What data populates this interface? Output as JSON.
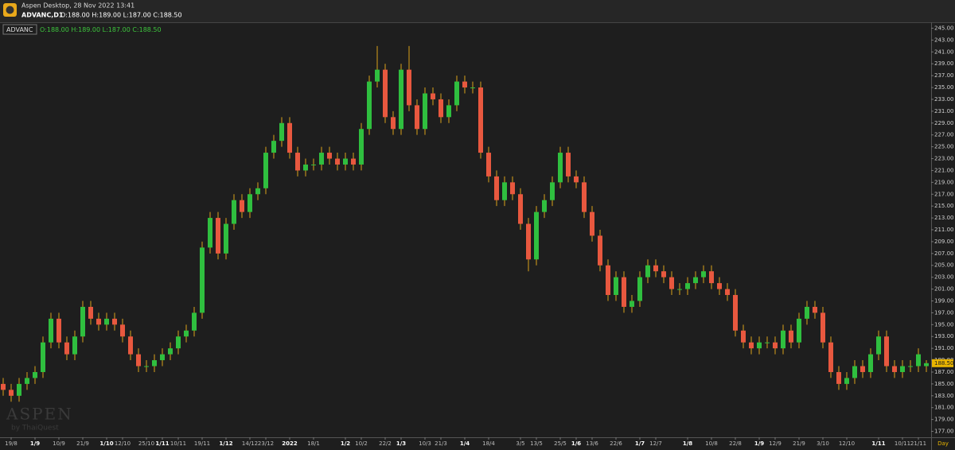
{
  "window_title": "Aspen Desktop, 28 Nov 2022 13:41",
  "symbol_header": "ADVANC,D1",
  "ohlc_header": "O:188.00 H:189.00 L:187.00 C:188.50",
  "watermark": "ASPEN",
  "watermark_sub": "by ThaiQuest",
  "chart_data": {
    "type": "candlestick",
    "legend_symbol": "ADVANC",
    "legend_ohlc": "O:188.00 H:189.00 L:187.00 C:188.50",
    "up_color": "#2fbf3f",
    "down_color": "#e8583f",
    "wick_color": "#d9a21b",
    "grid": false,
    "ylim": [
      176,
      246
    ],
    "yticks": [
      {
        "value": 177,
        "label": "177.00"
      },
      {
        "value": 179,
        "label": "179.00"
      },
      {
        "value": 181,
        "label": "181.00"
      },
      {
        "value": 183,
        "label": "183.00"
      },
      {
        "value": 185,
        "label": "185.00"
      },
      {
        "value": 187,
        "label": "187.00"
      },
      {
        "value": 189,
        "label": "189.00"
      },
      {
        "value": 191,
        "label": "191.00"
      },
      {
        "value": 193,
        "label": "193.00"
      },
      {
        "value": 195,
        "label": "195.00"
      },
      {
        "value": 197,
        "label": "197.00"
      },
      {
        "value": 199,
        "label": "199.00"
      },
      {
        "value": 201,
        "label": "201.00"
      },
      {
        "value": 203,
        "label": "203.00"
      },
      {
        "value": 205,
        "label": "205.00"
      },
      {
        "value": 207,
        "label": "207.00"
      },
      {
        "value": 209,
        "label": "209.00"
      },
      {
        "value": 211,
        "label": "211.00"
      },
      {
        "value": 213,
        "label": "213.00"
      },
      {
        "value": 215,
        "label": "215.00"
      },
      {
        "value": 217,
        "label": "217.00"
      },
      {
        "value": 219,
        "label": "219.00"
      },
      {
        "value": 221,
        "label": "221.00"
      },
      {
        "value": 223,
        "label": "223.00"
      },
      {
        "value": 225,
        "label": "225.00"
      },
      {
        "value": 227,
        "label": "227.00"
      },
      {
        "value": 229,
        "label": "229.00"
      },
      {
        "value": 231,
        "label": "231.00"
      },
      {
        "value": 233,
        "label": "233.00"
      },
      {
        "value": 235,
        "label": "235.00"
      },
      {
        "value": 237,
        "label": "237.00"
      },
      {
        "value": 239,
        "label": "239.00"
      },
      {
        "value": 241,
        "label": "241.00"
      },
      {
        "value": 243,
        "label": "243.00"
      },
      {
        "value": 245,
        "label": "245.00"
      }
    ],
    "last_price": {
      "value": 188.5,
      "label": "188.50"
    },
    "x_unit": "Day",
    "categories": [
      null,
      "19/8",
      null,
      null,
      "1/9",
      null,
      null,
      "10/9",
      null,
      null,
      "21/9",
      null,
      null,
      "1/10",
      null,
      "12/10",
      null,
      null,
      "25/10",
      null,
      "1/11",
      null,
      "10/11",
      null,
      null,
      "19/11",
      null,
      null,
      "1/12",
      null,
      null,
      "14/12",
      null,
      "23/12",
      null,
      null,
      "2022",
      null,
      null,
      "18/1",
      null,
      null,
      null,
      "1/2",
      null,
      "10/2",
      null,
      null,
      "22/2",
      null,
      "1/3",
      null,
      null,
      "10/3",
      null,
      "21/3",
      null,
      null,
      "1/4",
      null,
      null,
      "18/4",
      null,
      null,
      null,
      "3/5",
      null,
      "13/5",
      null,
      null,
      "25/5",
      null,
      "1/6",
      null,
      "13/6",
      null,
      null,
      "22/6",
      null,
      null,
      "1/7",
      null,
      "12/7",
      null,
      null,
      null,
      "1/8",
      null,
      null,
      "10/8",
      null,
      null,
      "22/8",
      null,
      null,
      "1/9",
      null,
      "12/9",
      null,
      null,
      "21/9",
      null,
      null,
      "3/10",
      null,
      null,
      "12/10",
      null,
      null,
      null,
      "1/11",
      null,
      null,
      "10/11",
      null,
      "21/11",
      null
    ],
    "open": [
      185,
      184,
      183,
      185,
      186,
      187,
      192,
      196,
      192,
      190,
      193,
      198,
      196,
      195,
      196,
      195,
      193,
      190,
      188,
      188,
      189,
      190,
      191,
      193,
      194,
      197,
      208,
      213,
      207,
      212,
      216,
      214,
      217,
      218,
      224,
      226,
      229,
      224,
      221,
      222,
      222,
      224,
      223,
      222,
      223,
      222,
      228,
      236,
      238,
      230,
      228,
      238,
      232,
      228,
      234,
      233,
      230,
      232,
      236,
      235,
      235,
      224,
      220,
      216,
      219,
      217,
      212,
      206,
      214,
      216,
      219,
      224,
      220,
      219,
      214,
      210,
      205,
      200,
      203,
      198,
      199,
      203,
      205,
      204,
      203,
      201,
      201,
      202,
      203,
      204,
      202,
      201,
      200,
      194,
      192,
      191,
      192,
      192,
      191,
      194,
      192,
      196,
      198,
      197,
      192,
      187,
      185,
      186,
      188,
      187,
      190,
      193,
      188,
      187,
      188,
      188,
      188
    ],
    "high": [
      186,
      185,
      186,
      187,
      188,
      193,
      197,
      197,
      193,
      194,
      199,
      199,
      197,
      197,
      197,
      196,
      194,
      191,
      189,
      190,
      191,
      192,
      194,
      195,
      198,
      209,
      214,
      214,
      213,
      217,
      217,
      218,
      219,
      225,
      227,
      230,
      230,
      225,
      223,
      223,
      225,
      225,
      224,
      224,
      224,
      229,
      237,
      242,
      239,
      231,
      239,
      242,
      233,
      235,
      235,
      234,
      233,
      237,
      237,
      236,
      236,
      225,
      221,
      220,
      220,
      218,
      213,
      215,
      217,
      220,
      225,
      225,
      221,
      220,
      215,
      211,
      206,
      204,
      204,
      200,
      204,
      206,
      206,
      205,
      204,
      202,
      203,
      204,
      205,
      205,
      203,
      202,
      201,
      195,
      193,
      193,
      193,
      193,
      195,
      195,
      197,
      199,
      199,
      198,
      193,
      188,
      187,
      189,
      189,
      191,
      194,
      194,
      189,
      189,
      189,
      191,
      189
    ],
    "low": [
      183,
      182,
      182,
      184,
      185,
      186,
      191,
      191,
      189,
      189,
      192,
      195,
      194,
      194,
      194,
      192,
      189,
      187,
      187,
      187,
      188,
      189,
      190,
      192,
      193,
      196,
      207,
      206,
      206,
      211,
      213,
      213,
      216,
      217,
      223,
      225,
      223,
      220,
      220,
      221,
      221,
      222,
      221,
      221,
      221,
      221,
      227,
      235,
      229,
      227,
      227,
      231,
      227,
      227,
      232,
      229,
      229,
      231,
      234,
      234,
      223,
      219,
      215,
      215,
      216,
      211,
      204,
      205,
      213,
      215,
      218,
      219,
      218,
      213,
      209,
      204,
      199,
      199,
      197,
      197,
      198,
      202,
      203,
      202,
      200,
      200,
      200,
      201,
      202,
      201,
      200,
      199,
      193,
      191,
      190,
      190,
      191,
      190,
      190,
      191,
      191,
      195,
      196,
      191,
      186,
      184,
      184,
      185,
      186,
      186,
      189,
      187,
      186,
      186,
      187,
      187,
      187
    ],
    "close": [
      184,
      183,
      185,
      186,
      187,
      192,
      196,
      192,
      190,
      193,
      198,
      196,
      195,
      196,
      195,
      193,
      190,
      188,
      188,
      189,
      190,
      191,
      193,
      194,
      197,
      208,
      213,
      207,
      212,
      216,
      214,
      217,
      218,
      224,
      226,
      229,
      224,
      221,
      222,
      222,
      224,
      223,
      222,
      223,
      222,
      228,
      236,
      238,
      230,
      228,
      238,
      232,
      228,
      234,
      233,
      230,
      232,
      236,
      235,
      235,
      224,
      220,
      216,
      219,
      217,
      212,
      206,
      214,
      216,
      219,
      224,
      220,
      219,
      214,
      210,
      205,
      200,
      203,
      198,
      199,
      203,
      205,
      204,
      203,
      201,
      201,
      202,
      203,
      204,
      202,
      201,
      200,
      194,
      192,
      191,
      192,
      192,
      191,
      194,
      192,
      196,
      198,
      197,
      192,
      187,
      185,
      186,
      188,
      187,
      190,
      193,
      188,
      187,
      188,
      188,
      190,
      188.5
    ]
  }
}
